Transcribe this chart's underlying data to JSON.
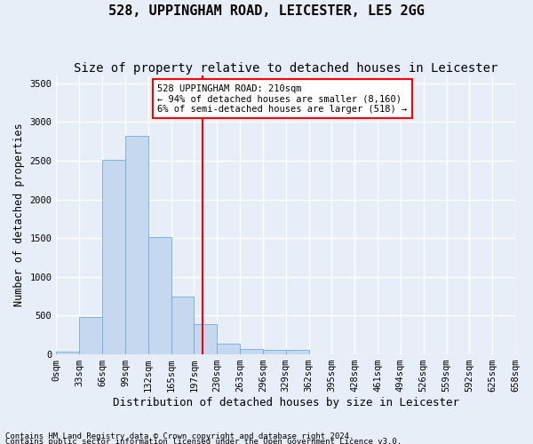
{
  "title": "528, UPPINGHAM ROAD, LEICESTER, LE5 2GG",
  "subtitle": "Size of property relative to detached houses in Leicester",
  "xlabel": "Distribution of detached houses by size in Leicester",
  "ylabel": "Number of detached properties",
  "footnote1": "Contains HM Land Registry data © Crown copyright and database right 2024.",
  "footnote2": "Contains public sector information licensed under the Open Government Licence v3.0.",
  "bin_labels": [
    "0sqm",
    "33sqm",
    "66sqm",
    "99sqm",
    "132sqm",
    "165sqm",
    "197sqm",
    "230sqm",
    "263sqm",
    "296sqm",
    "329sqm",
    "362sqm",
    "395sqm",
    "428sqm",
    "461sqm",
    "494sqm",
    "526sqm",
    "559sqm",
    "592sqm",
    "625sqm",
    "658sqm"
  ],
  "bar_values": [
    30,
    480,
    2510,
    2820,
    1520,
    750,
    390,
    140,
    75,
    55,
    55,
    0,
    0,
    0,
    0,
    0,
    0,
    0,
    0,
    0
  ],
  "bar_color": "#c5d8f0",
  "bar_edge_color": "#6baed6",
  "bar_width": 1.0,
  "vline_x": 6.36,
  "vline_color": "red",
  "annotation_text_line1": "528 UPPINGHAM ROAD: 210sqm",
  "annotation_text_line2": "← 94% of detached houses are smaller (8,160)",
  "annotation_text_line3": "6% of semi-detached houses are larger (518) →",
  "ylim": [
    0,
    3600
  ],
  "yticks": [
    0,
    500,
    1000,
    1500,
    2000,
    2500,
    3000,
    3500
  ],
  "bg_color": "#e8eef8",
  "grid_color": "#ffffff",
  "title_fontsize": 11,
  "subtitle_fontsize": 10,
  "xlabel_fontsize": 9,
  "ylabel_fontsize": 8.5,
  "tick_fontsize": 7.5,
  "footnote_fontsize": 6.5
}
